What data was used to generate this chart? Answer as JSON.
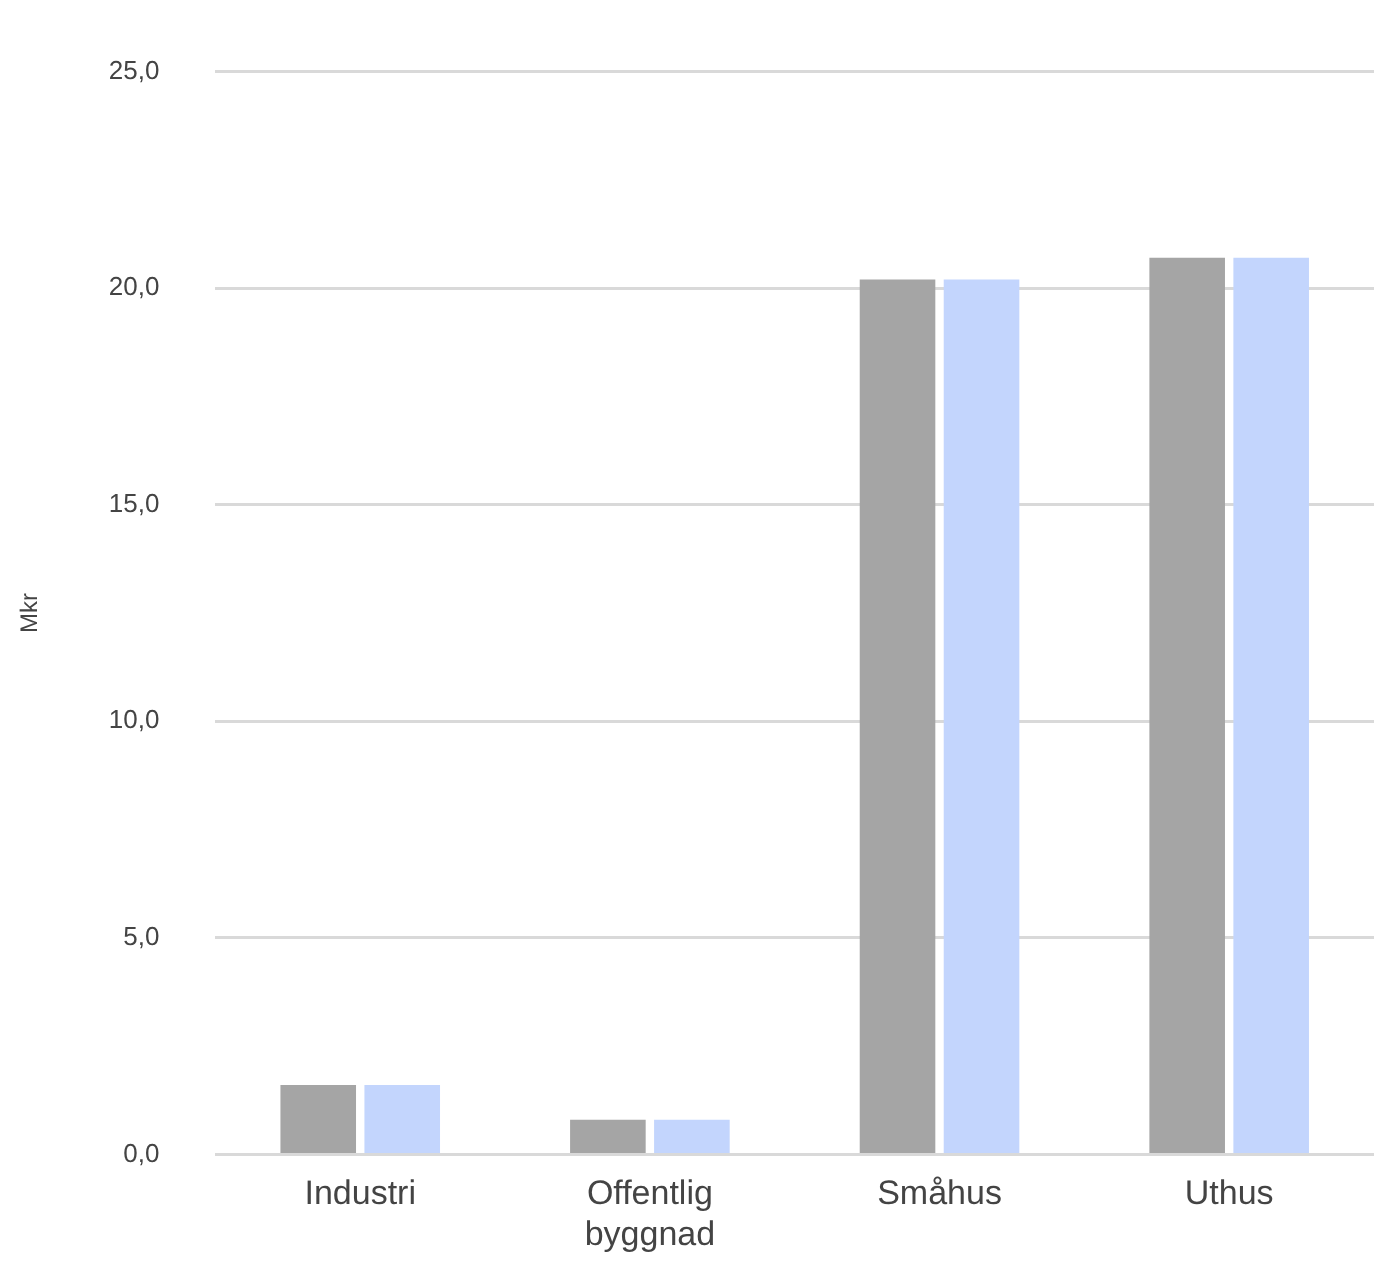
{
  "chart_data": {
    "type": "bar",
    "ylabel": "Mkr",
    "categories": [
      "Industri",
      "Offentlig byggnad",
      "Småhus",
      "Uthus"
    ],
    "series": [
      {
        "color": "#a5a5a5",
        "values": [
          1.6,
          0.8,
          20.2,
          20.7
        ]
      },
      {
        "color": "#c3d5fd",
        "values": [
          1.6,
          0.8,
          20.2,
          20.7
        ]
      }
    ],
    "ylim": [
      0,
      25
    ],
    "yticks": [
      {
        "value": 0,
        "label": "0,0"
      },
      {
        "value": 5,
        "label": "5,0"
      },
      {
        "value": 10,
        "label": "10,0"
      },
      {
        "value": 15,
        "label": "15,0"
      },
      {
        "value": 20,
        "label": "20,0"
      },
      {
        "value": 25,
        "label": "25,0"
      }
    ],
    "grid": "y",
    "legend": false
  }
}
